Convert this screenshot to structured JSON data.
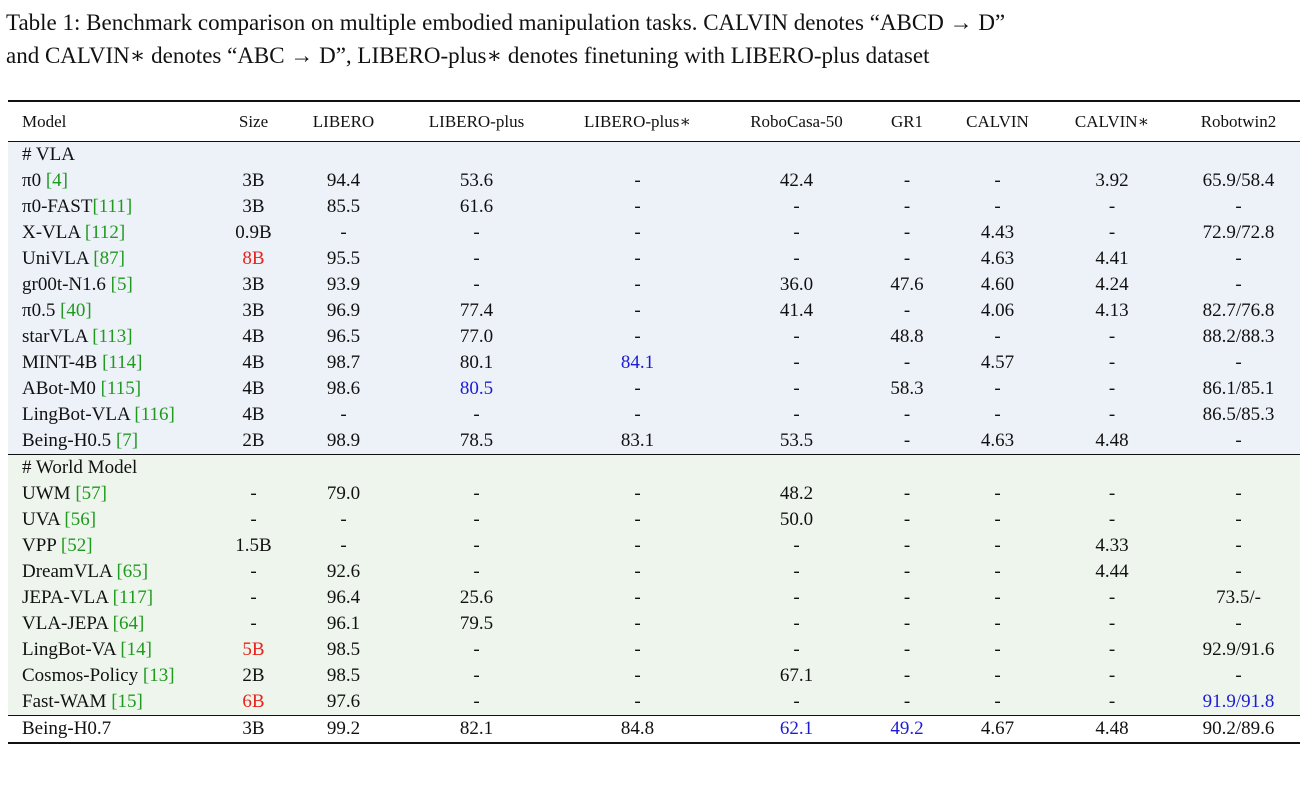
{
  "caption": {
    "lines": [
      "Table 1: Benchmark comparison on multiple embodied manipulation tasks. CALVIN denotes “ABCD → D”",
      "and CALVIN∗ denotes “ABC → D”, LIBERO-plus∗ denotes finetuning with LIBERO-plus dataset"
    ]
  },
  "table": {
    "header": [
      "Model",
      "Size",
      "LIBERO",
      "LIBERO-plus",
      "LIBERO-plus∗",
      "RoboCasa-50",
      "GR1",
      "CALVIN",
      "CALVIN∗",
      "Robotwin2"
    ],
    "sections": [
      {
        "title": "# VLA",
        "rows": [
          {
            "model": "π0",
            "ref": " [4]",
            "cells": [
              "3B",
              "94.4",
              "53.6",
              "-",
              "42.4",
              "-",
              "-",
              "3.92",
              "65.9/58.4"
            ]
          },
          {
            "model": "π0-FAST",
            "ref": "[111]",
            "cells": [
              "3B",
              "85.5",
              "61.6",
              "-",
              "-",
              "-",
              "-",
              "-",
              "-"
            ]
          },
          {
            "model": "X-VLA",
            "ref": " [112]",
            "cells": [
              "0.9B",
              "-",
              "-",
              "-",
              "-",
              "-",
              "4.43",
              "-",
              "72.9/72.8"
            ]
          },
          {
            "model": "UniVLA",
            "ref": " [87]",
            "cells": [
              {
                "text": "8B",
                "style": "red"
              },
              "95.5",
              "-",
              "-",
              "-",
              "-",
              "4.63",
              "4.41",
              "-"
            ]
          },
          {
            "model": "gr00t-N1.6",
            "ref": " [5]",
            "cells": [
              "3B",
              "93.9",
              "-",
              "-",
              "36.0",
              "47.6",
              "4.60",
              "4.24",
              "-"
            ]
          },
          {
            "model": "π0.5",
            "ref": " [40]",
            "cells": [
              "3B",
              "96.9",
              "77.4",
              "-",
              "41.4",
              "-",
              "4.06",
              "4.13",
              "82.7/76.8"
            ]
          },
          {
            "model": "starVLA",
            "ref": " [113]",
            "cells": [
              "4B",
              "96.5",
              "77.0",
              "-",
              "-",
              "48.8",
              "-",
              "-",
              "88.2/88.3"
            ]
          },
          {
            "model": "MINT-4B",
            "ref": " [114]",
            "cells": [
              "4B",
              "98.7",
              "80.1",
              {
                "text": "84.1",
                "style": "blue"
              },
              "-",
              "-",
              "4.57",
              "-",
              "-"
            ]
          },
          {
            "model": "ABot-M0",
            "ref": " [115]",
            "cells": [
              "4B",
              "98.6",
              {
                "text": "80.5",
                "style": "blue"
              },
              "-",
              "-",
              {
                "text": "58.3",
                "style": "bold"
              },
              "-",
              "-",
              "86.1/85.1"
            ]
          },
          {
            "model": "LingBot-VLA",
            "ref": " [116]",
            "cells": [
              "4B",
              "-",
              "-",
              "-",
              "-",
              "-",
              "-",
              "-",
              "86.5/85.3"
            ]
          },
          {
            "model": "Being-H0.5",
            "ref": " [7]",
            "cells": [
              "2B",
              "98.9",
              "78.5",
              "83.1",
              "53.5",
              "-",
              "4.63",
              "4.48",
              "-"
            ]
          }
        ]
      },
      {
        "title": "# World Model",
        "rows": [
          {
            "model": "UWM",
            "ref": " [57]",
            "cells": [
              "-",
              "79.0",
              "-",
              "-",
              "48.2",
              "-",
              "-",
              "-",
              "-"
            ]
          },
          {
            "model": "UVA",
            "ref": " [56]",
            "cells": [
              "-",
              "-",
              "-",
              "-",
              "50.0",
              "-",
              "-",
              "-",
              "-"
            ]
          },
          {
            "model": "VPP",
            "ref": " [52]",
            "cells": [
              "1.5B",
              "-",
              "-",
              "-",
              "-",
              "-",
              "-",
              "4.33",
              "-"
            ]
          },
          {
            "model": "DreamVLA",
            "ref": " [65]",
            "cells": [
              "-",
              "92.6",
              "-",
              "-",
              "-",
              "-",
              "-",
              "4.44",
              "-"
            ]
          },
          {
            "model": "JEPA-VLA",
            "ref": " [117]",
            "cells": [
              "-",
              "96.4",
              "25.6",
              "-",
              "-",
              "-",
              "-",
              "-",
              "73.5/-"
            ]
          },
          {
            "model": "VLA-JEPA",
            "ref": " [64]",
            "cells": [
              "-",
              "96.1",
              "79.5",
              "-",
              "-",
              "-",
              "-",
              "-",
              "-"
            ]
          },
          {
            "model": "LingBot-VA",
            "ref": " [14]",
            "cells": [
              {
                "text": "5B",
                "style": "red"
              },
              "98.5",
              "-",
              "-",
              "-",
              "-",
              "-",
              "-",
              {
                "text": "92.9/91.6",
                "style": "bold"
              }
            ]
          },
          {
            "model": "Cosmos-Policy",
            "ref": " [13]",
            "cells": [
              "2B",
              "98.5",
              "-",
              "-",
              {
                "text": "67.1",
                "style": "bold"
              },
              "-",
              "-",
              "-",
              "-"
            ]
          },
          {
            "model": "Fast-WAM",
            "ref": " [15]",
            "cells": [
              {
                "text": "6B",
                "style": "red"
              },
              "97.6",
              "-",
              "-",
              "-",
              "-",
              "-",
              "-",
              {
                "text": "91.9/91.8",
                "style": "blue"
              }
            ]
          }
        ]
      }
    ],
    "final": {
      "model": "Being-H0.7",
      "cells": [
        "3B",
        {
          "text": "99.2",
          "style": "bold"
        },
        {
          "text": "82.1",
          "style": "bold"
        },
        {
          "text": "84.8",
          "style": "bold"
        },
        {
          "text": "62.1",
          "style": "blue"
        },
        {
          "text": "49.2",
          "style": "blue"
        },
        {
          "text": "4.67",
          "style": "bold"
        },
        {
          "text": "4.48",
          "style": "bold"
        },
        "90.2/89.6"
      ]
    }
  }
}
